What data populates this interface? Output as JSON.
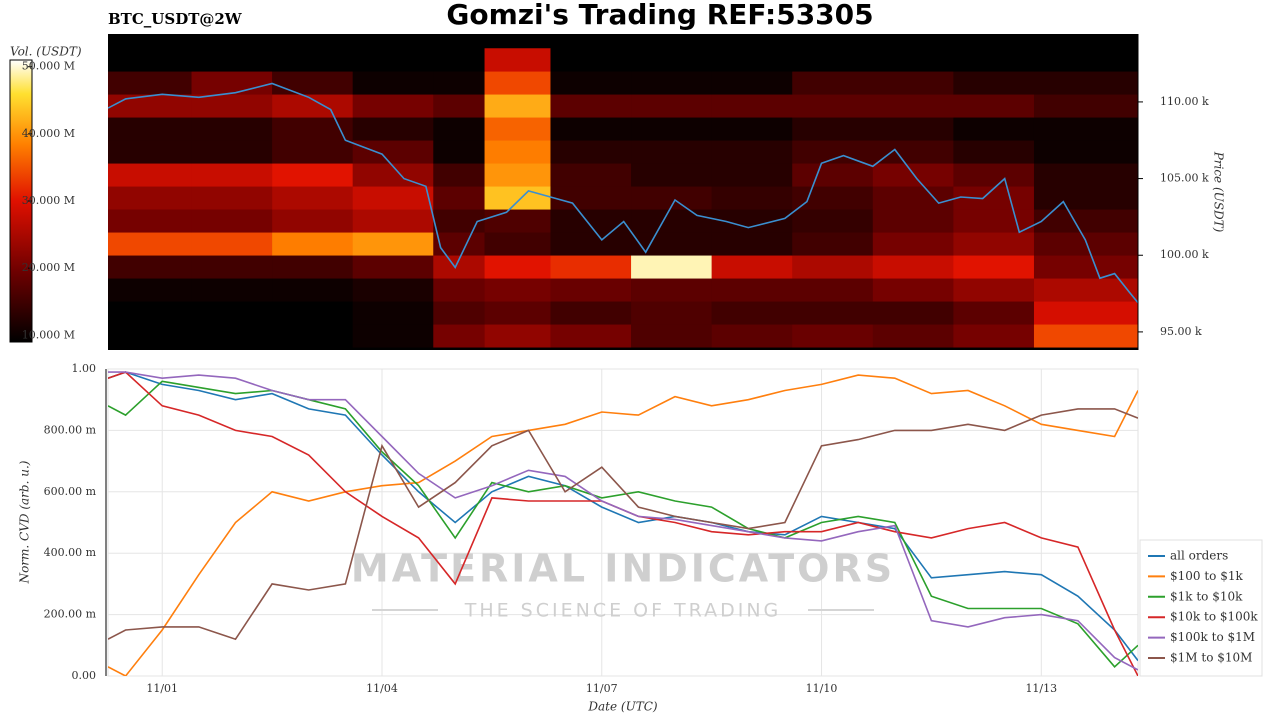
{
  "chart_data": [
    {
      "type": "heatmap",
      "title": "Gomzi's Trading REF:53305",
      "subtitle": "BTC_USDT@2W",
      "ylabel": "Price (USDT)",
      "xlim": [
        0.26,
        14.32
      ],
      "ylim": [
        93820,
        114430
      ],
      "yticks": [
        {
          "value": 95000,
          "label": "95.00 k"
        },
        {
          "value": 100000,
          "label": "100.00 k"
        },
        {
          "value": 105000,
          "label": "105.00 k"
        },
        {
          "value": 110000,
          "label": "110.00 k"
        }
      ],
      "time_bins": [
        0.26,
        1.4,
        2.5,
        3.6,
        4.7,
        5.4,
        6.3,
        7.4,
        8.5,
        9.6,
        10.7,
        11.8,
        12.9,
        14.32
      ],
      "price_bins": [
        94000,
        95500,
        97000,
        98500,
        100000,
        101500,
        103000,
        104500,
        106000,
        107500,
        109000,
        110500,
        112000,
        113500
      ],
      "z": [
        [
          9000000.0,
          9000000.0,
          9000000.0,
          10000000.0,
          18000000.0,
          20000000.0,
          18000000.0,
          15000000.0,
          16000000.0,
          17000000.0,
          16000000.0,
          18000000.0,
          30000000.0
        ],
        [
          9000000.0,
          9000000.0,
          9000000.0,
          10000000.0,
          15000000.0,
          16000000.0,
          14000000.0,
          15000000.0,
          14000000.0,
          14000000.0,
          14000000.0,
          16000000.0,
          25000000.0
        ],
        [
          10000000.0,
          10000000.0,
          10000000.0,
          11000000.0,
          17000000.0,
          18000000.0,
          17000000.0,
          16000000.0,
          16000000.0,
          16000000.0,
          18000000.0,
          20000000.0,
          22000000.0
        ],
        [
          14000000.0,
          14000000.0,
          14000000.0,
          16000000.0,
          22000000.0,
          26000000.0,
          28000000.0,
          48000000.0,
          24000000.0,
          22000000.0,
          24000000.0,
          26000000.0,
          18000000.0
        ],
        [
          30000000.0,
          30000000.0,
          34000000.0,
          36000000.0,
          16000000.0,
          14000000.0,
          12000000.0,
          12000000.0,
          12000000.0,
          14000000.0,
          18000000.0,
          20000000.0,
          16000000.0
        ],
        [
          18000000.0,
          18000000.0,
          20000000.0,
          22000000.0,
          14000000.0,
          15000000.0,
          12000000.0,
          12000000.0,
          12000000.0,
          13000000.0,
          16000000.0,
          18000000.0,
          14000000.0
        ],
        [
          20000000.0,
          20000000.0,
          22000000.0,
          24000000.0,
          16000000.0,
          40000000.0,
          14000000.0,
          14000000.0,
          13000000.0,
          14000000.0,
          16000000.0,
          18000000.0,
          12000000.0
        ],
        [
          24000000.0,
          24000000.0,
          26000000.0,
          20000000.0,
          14000000.0,
          36000000.0,
          14000000.0,
          12000000.0,
          12000000.0,
          16000000.0,
          18000000.0,
          16000000.0,
          12000000.0
        ],
        [
          12000000.0,
          12000000.0,
          14000000.0,
          16000000.0,
          10000000.0,
          34000000.0,
          12000000.0,
          12000000.0,
          12000000.0,
          14000000.0,
          14000000.0,
          12000000.0,
          10000000.0
        ],
        [
          12000000.0,
          12000000.0,
          14000000.0,
          12000000.0,
          10000000.0,
          32000000.0,
          10000000.0,
          10000000.0,
          10000000.0,
          12000000.0,
          12000000.0,
          10000000.0,
          10000000.0
        ],
        [
          20000000.0,
          20000000.0,
          22000000.0,
          18000000.0,
          16000000.0,
          38000000.0,
          16000000.0,
          16000000.0,
          16000000.0,
          16000000.0,
          16000000.0,
          16000000.0,
          14000000.0
        ],
        [
          14000000.0,
          18000000.0,
          14000000.0,
          10000000.0,
          10000000.0,
          30000000.0,
          10000000.0,
          10000000.0,
          10000000.0,
          14000000.0,
          14000000.0,
          12000000.0,
          12000000.0
        ],
        [
          9000000.0,
          9000000.0,
          9000000.0,
          9000000.0,
          9000000.0,
          24000000.0,
          9000000.0,
          9000000.0,
          9000000.0,
          9000000.0,
          9000000.0,
          9000000.0,
          9000000.0
        ]
      ],
      "colormap": [
        "#000000",
        "#6e0000",
        "#e01000",
        "#ff8000",
        "#ffe030",
        "#ffffff"
      ],
      "colorbar": {
        "label": "Vol. (USDT)",
        "lim": [
          9000000,
          51000000
        ],
        "ticks": [
          {
            "value": 10000000,
            "label": "10.000 M"
          },
          {
            "value": 20000000,
            "label": "20.000 M"
          },
          {
            "value": 30000000,
            "label": "30.000 M"
          },
          {
            "value": 40000000,
            "label": "40.000 M"
          },
          {
            "value": 50000000,
            "label": "50.000 M"
          }
        ]
      },
      "x": [
        0.26,
        0.5,
        1.0,
        1.5,
        2.0,
        2.5,
        3.0,
        3.3,
        3.5,
        4.0,
        4.3,
        4.6,
        4.8,
        5.0,
        5.3,
        5.7,
        6.0,
        6.3,
        6.6,
        7.0,
        7.3,
        7.6,
        8.0,
        8.3,
        8.7,
        9.0,
        9.5,
        9.8,
        10.0,
        10.3,
        10.7,
        11.0,
        11.3,
        11.6,
        11.9,
        12.2,
        12.5,
        12.7,
        13.0,
        13.3,
        13.6,
        13.8,
        14.0,
        14.2,
        14.32
      ],
      "series": [
        {
          "color": "#3a8fd0",
          "values": [
            109600,
            110200,
            110500,
            110300,
            110600,
            111200,
            110300,
            109500,
            107500,
            106600,
            105000,
            104500,
            100500,
            99200,
            102200,
            102800,
            104200,
            103800,
            103400,
            101000,
            102200,
            100200,
            103600,
            102600,
            102200,
            101800,
            102400,
            103500,
            106000,
            106500,
            105800,
            106900,
            105000,
            103400,
            103800,
            103700,
            105000,
            101500,
            102200,
            103500,
            101000,
            98500,
            98800,
            97600,
            96900
          ]
        }
      ]
    },
    {
      "type": "line",
      "xlabel": "Date (UTC)",
      "ylabel": "Norm. CVD (arb. u.)",
      "watermark": [
        "MATERIAL INDICATORS",
        "THE SCIENCE OF TRADING"
      ],
      "grid": true,
      "legend": "right",
      "xlim": [
        0.26,
        14.32
      ],
      "ylim": [
        0,
        1
      ],
      "xticks": [
        {
          "value": 1,
          "label": "11/01"
        },
        {
          "value": 4,
          "label": "11/04"
        },
        {
          "value": 7,
          "label": "11/07"
        },
        {
          "value": 10,
          "label": "11/10"
        },
        {
          "value": 13,
          "label": "11/13"
        }
      ],
      "yticks": [
        {
          "value": 0,
          "label": "0.00"
        },
        {
          "value": 0.2,
          "label": "200.00 m"
        },
        {
          "value": 0.4,
          "label": "400.00 m"
        },
        {
          "value": 0.6,
          "label": "600.00 m"
        },
        {
          "value": 0.8,
          "label": "800.00 m"
        },
        {
          "value": 1,
          "label": "1.00"
        }
      ],
      "x": [
        0.26,
        0.5,
        1,
        1.5,
        2,
        2.5,
        3,
        3.5,
        4,
        4.5,
        5,
        5.5,
        6,
        6.5,
        7,
        7.5,
        8,
        8.5,
        9,
        9.5,
        10,
        10.5,
        11,
        11.5,
        12,
        12.5,
        13,
        13.5,
        14,
        14.32
      ],
      "series": [
        {
          "name": "all orders",
          "color": "#1f77b4",
          "values": [
            0.97,
            0.99,
            0.95,
            0.93,
            0.9,
            0.92,
            0.87,
            0.85,
            0.72,
            0.6,
            0.5,
            0.6,
            0.65,
            0.62,
            0.55,
            0.5,
            0.52,
            0.5,
            0.47,
            0.46,
            0.52,
            0.5,
            0.48,
            0.32,
            0.33,
            0.34,
            0.33,
            0.26,
            0.15,
            0.05
          ]
        },
        {
          "name": "$100 to $1k",
          "color": "#ff7f0e",
          "values": [
            0.03,
            0.0,
            0.15,
            0.33,
            0.5,
            0.6,
            0.57,
            0.6,
            0.62,
            0.63,
            0.7,
            0.78,
            0.8,
            0.82,
            0.86,
            0.85,
            0.91,
            0.88,
            0.9,
            0.93,
            0.95,
            0.98,
            0.97,
            0.92,
            0.93,
            0.88,
            0.82,
            0.8,
            0.78,
            0.93
          ]
        },
        {
          "name": "$1k to $10k",
          "color": "#2ca02c",
          "values": [
            0.88,
            0.85,
            0.96,
            0.94,
            0.92,
            0.93,
            0.9,
            0.87,
            0.73,
            0.62,
            0.45,
            0.63,
            0.6,
            0.62,
            0.58,
            0.6,
            0.57,
            0.55,
            0.48,
            0.45,
            0.5,
            0.52,
            0.5,
            0.26,
            0.22,
            0.22,
            0.22,
            0.17,
            0.03,
            0.1
          ]
        },
        {
          "name": "$10k to $100k",
          "color": "#d62728",
          "values": [
            0.97,
            0.99,
            0.88,
            0.85,
            0.8,
            0.78,
            0.72,
            0.6,
            0.52,
            0.45,
            0.3,
            0.58,
            0.57,
            0.57,
            0.57,
            0.52,
            0.5,
            0.47,
            0.46,
            0.47,
            0.47,
            0.5,
            0.47,
            0.45,
            0.48,
            0.5,
            0.45,
            0.42,
            0.15,
            0.0
          ]
        },
        {
          "name": "$100k to $1M",
          "color": "#9467bd",
          "values": [
            0.99,
            0.99,
            0.97,
            0.98,
            0.97,
            0.93,
            0.9,
            0.9,
            0.78,
            0.66,
            0.58,
            0.62,
            0.67,
            0.65,
            0.57,
            0.52,
            0.51,
            0.49,
            0.47,
            0.45,
            0.44,
            0.47,
            0.49,
            0.18,
            0.16,
            0.19,
            0.2,
            0.18,
            0.06,
            0.02
          ]
        },
        {
          "name": "$1M to $10M",
          "color": "#8c564b",
          "values": [
            0.12,
            0.15,
            0.16,
            0.16,
            0.12,
            0.3,
            0.28,
            0.3,
            0.75,
            0.55,
            0.63,
            0.75,
            0.8,
            0.6,
            0.68,
            0.55,
            0.52,
            0.5,
            0.48,
            0.5,
            0.75,
            0.77,
            0.8,
            0.8,
            0.82,
            0.8,
            0.85,
            0.87,
            0.87,
            0.84
          ]
        }
      ]
    }
  ]
}
